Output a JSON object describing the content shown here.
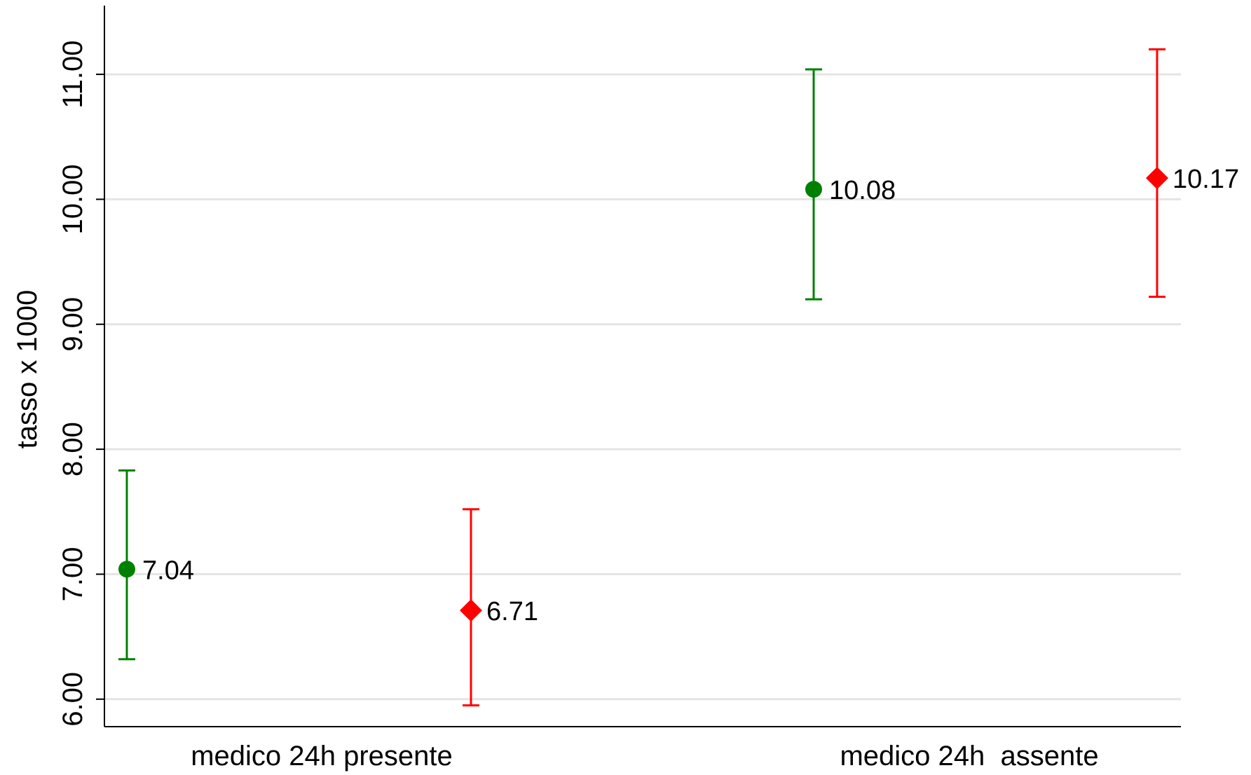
{
  "chart_data": {
    "type": "scatter",
    "ylabel": "tasso x 1000",
    "ylim": [
      5.78,
      11.55
    ],
    "yticks": [
      6,
      7,
      8,
      9,
      10,
      11
    ],
    "ytick_labels": [
      "6.00",
      "7.00",
      "8.00",
      "9.00",
      "10.00",
      "11.00"
    ],
    "grid": true,
    "categories": [
      "medico 24h presente",
      "medico 24h  assente"
    ],
    "points": [
      {
        "category": "medico 24h presente",
        "value": 7.04,
        "lower": 6.32,
        "upper": 7.83,
        "label": "7.04",
        "color": "#008000",
        "marker": "circle"
      },
      {
        "category": "medico 24h presente",
        "value": 6.71,
        "lower": 5.95,
        "upper": 7.52,
        "label": "6.71",
        "color": "#ff0000",
        "marker": "diamond"
      },
      {
        "category": "medico 24h  assente",
        "value": 10.08,
        "lower": 9.2,
        "upper": 11.04,
        "label": "10.08",
        "color": "#008000",
        "marker": "circle"
      },
      {
        "category": "medico 24h  assente",
        "value": 10.17,
        "lower": 9.22,
        "upper": 11.2,
        "label": "10.17",
        "color": "#ff0000",
        "marker": "diamond"
      }
    ]
  }
}
